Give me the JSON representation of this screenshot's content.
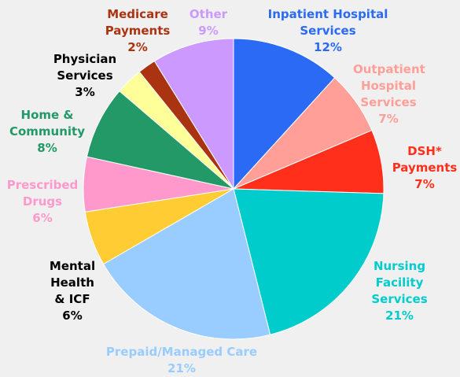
{
  "chart_data": {
    "type": "pie",
    "categories": [
      "Inpatient Hospital Services",
      "Outpatient Hospital Services",
      "DSH* Payments",
      "Nursing Facility Services",
      "Prepaid/Managed Care",
      "Mental Health & ICF",
      "Prescribed Drugs",
      "Home & Community",
      "Physician Services",
      "Medicare Payments",
      "Other"
    ],
    "values": [
      12,
      7,
      7,
      21,
      21,
      6,
      6,
      8,
      3,
      2,
      9
    ],
    "value_labels": [
      "12%",
      "7%",
      "7%",
      "21%",
      "21%",
      "6%",
      "6%",
      "8%",
      "3%",
      "2%",
      "9%"
    ],
    "colors": [
      "#2a6af5",
      "#ff9f98",
      "#ff2f1c",
      "#00cccc",
      "#99ccff",
      "#ffcc33",
      "#ff99cc",
      "#229966",
      "#ffff99",
      "#aa3311",
      "#cc99ff"
    ],
    "label_colors": [
      "#2a6af5",
      "#ff9f98",
      "#ff2f1c",
      "#00cccc",
      "#99ccff",
      "#000000",
      "#ff99cc",
      "#229966",
      "#000000",
      "#aa3311",
      "#cc99ff"
    ]
  }
}
